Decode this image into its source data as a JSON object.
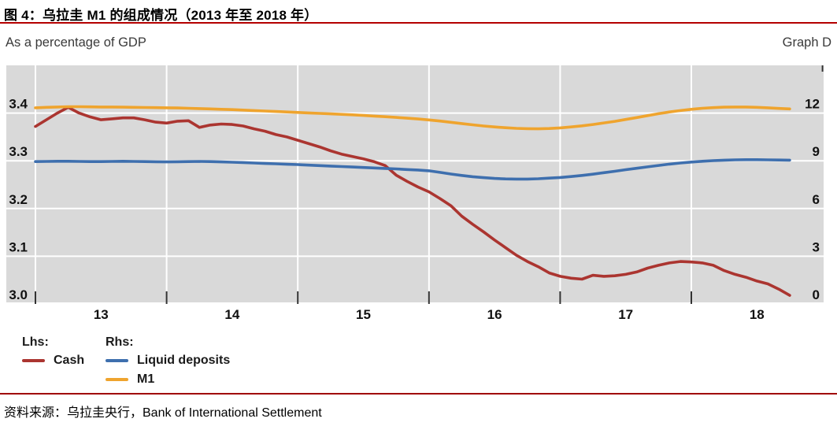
{
  "header": {
    "title": "图 4：乌拉圭 M1 的组成情况（2013 年至 2018 年）",
    "left_axis_caption": "As a percentage of GDP",
    "graph_label": "Graph D"
  },
  "colors": {
    "title_rule": "#b40000",
    "source_rule": "#a00000",
    "plot_background": "#d9d9d9",
    "gridline": "#ffffff",
    "tick_mark": "#333333",
    "cash_red": "#ab3530",
    "deposits_blue": "#3e6fae",
    "m1_orange": "#efa42e"
  },
  "legend": {
    "lhs_header": "Lhs:",
    "rhs_header": "Rhs:",
    "items": [
      {
        "label": "Cash",
        "axis": "lhs",
        "color": "#ab3530"
      },
      {
        "label": "Liquid deposits",
        "axis": "rhs",
        "color": "#3e6fae"
      },
      {
        "label": "M1",
        "axis": "rhs",
        "color": "#efa42e"
      }
    ]
  },
  "footer": {
    "source": "资料来源：乌拉圭央行，Bank of International Settlement"
  },
  "chart_data": {
    "type": "line",
    "title": "图 4：乌拉圭 M1 的组成情况（2013 年至 2018 年）",
    "subtitle_left": "As a percentage of GDP",
    "subtitle_right": "Graph D",
    "grid": true,
    "plot_bg": "#d9d9d9",
    "x_axis": {
      "tick_labels": [
        "13",
        "14",
        "15",
        "16",
        "17",
        "18"
      ],
      "frequency": "monthly",
      "start": "2013-01",
      "end": "2018-10"
    },
    "left_axis": {
      "caption": "As a percentage of GDP",
      "ticks": [
        3.0,
        3.1,
        3.2,
        3.3,
        3.4
      ],
      "range": [
        3.0,
        3.5
      ]
    },
    "right_axis": {
      "ticks": [
        0,
        3,
        6,
        9,
        12
      ],
      "range": [
        0,
        15
      ]
    },
    "series": [
      {
        "name": "Cash",
        "axis": "lhs",
        "color": "#ab3530",
        "values": [
          3.372,
          3.386,
          3.4,
          3.412,
          3.4,
          3.392,
          3.386,
          3.388,
          3.39,
          3.39,
          3.386,
          3.381,
          3.379,
          3.383,
          3.384,
          3.37,
          3.375,
          3.377,
          3.376,
          3.373,
          3.367,
          3.362,
          3.355,
          3.35,
          3.343,
          3.336,
          3.329,
          3.321,
          3.314,
          3.309,
          3.304,
          3.298,
          3.29,
          3.27,
          3.257,
          3.245,
          3.235,
          3.221,
          3.206,
          3.184,
          3.167,
          3.151,
          3.134,
          3.118,
          3.102,
          3.089,
          3.078,
          3.065,
          3.058,
          3.054,
          3.052,
          3.06,
          3.058,
          3.059,
          3.062,
          3.067,
          3.075,
          3.081,
          3.086,
          3.089,
          3.088,
          3.086,
          3.081,
          3.07,
          3.062,
          3.056,
          3.048,
          3.042,
          3.031,
          3.018
        ]
      },
      {
        "name": "Liquid deposits",
        "axis": "rhs",
        "color": "#3e6fae",
        "values": [
          8.95,
          8.96,
          8.97,
          8.97,
          8.96,
          8.95,
          8.95,
          8.96,
          8.97,
          8.96,
          8.95,
          8.94,
          8.93,
          8.94,
          8.95,
          8.96,
          8.95,
          8.93,
          8.91,
          8.89,
          8.86,
          8.83,
          8.81,
          8.78,
          8.76,
          8.73,
          8.7,
          8.67,
          8.64,
          8.61,
          8.58,
          8.55,
          8.52,
          8.49,
          8.45,
          8.42,
          8.37,
          8.27,
          8.17,
          8.08,
          8.0,
          7.94,
          7.89,
          7.86,
          7.85,
          7.85,
          7.87,
          7.91,
          7.95,
          8.01,
          8.08,
          8.16,
          8.25,
          8.34,
          8.44,
          8.53,
          8.62,
          8.71,
          8.79,
          8.86,
          8.92,
          8.97,
          9.01,
          9.04,
          9.06,
          9.07,
          9.07,
          9.06,
          9.05,
          9.04
        ]
      },
      {
        "name": "M1",
        "axis": "rhs",
        "color": "#efa42e",
        "values": [
          12.33,
          12.36,
          12.38,
          12.4,
          12.4,
          12.39,
          12.38,
          12.38,
          12.37,
          12.36,
          12.35,
          12.34,
          12.33,
          12.32,
          12.3,
          12.28,
          12.26,
          12.24,
          12.22,
          12.19,
          12.16,
          12.13,
          12.1,
          12.07,
          12.04,
          12.01,
          11.98,
          11.95,
          11.92,
          11.89,
          11.85,
          11.81,
          11.77,
          11.73,
          11.68,
          11.63,
          11.57,
          11.5,
          11.42,
          11.34,
          11.26,
          11.19,
          11.13,
          11.08,
          11.04,
          11.02,
          11.01,
          11.03,
          11.07,
          11.13,
          11.2,
          11.28,
          11.38,
          11.48,
          11.6,
          11.72,
          11.84,
          11.96,
          12.07,
          12.16,
          12.24,
          12.3,
          12.34,
          12.37,
          12.38,
          12.38,
          12.36,
          12.33,
          12.29,
          12.26
        ]
      }
    ]
  }
}
